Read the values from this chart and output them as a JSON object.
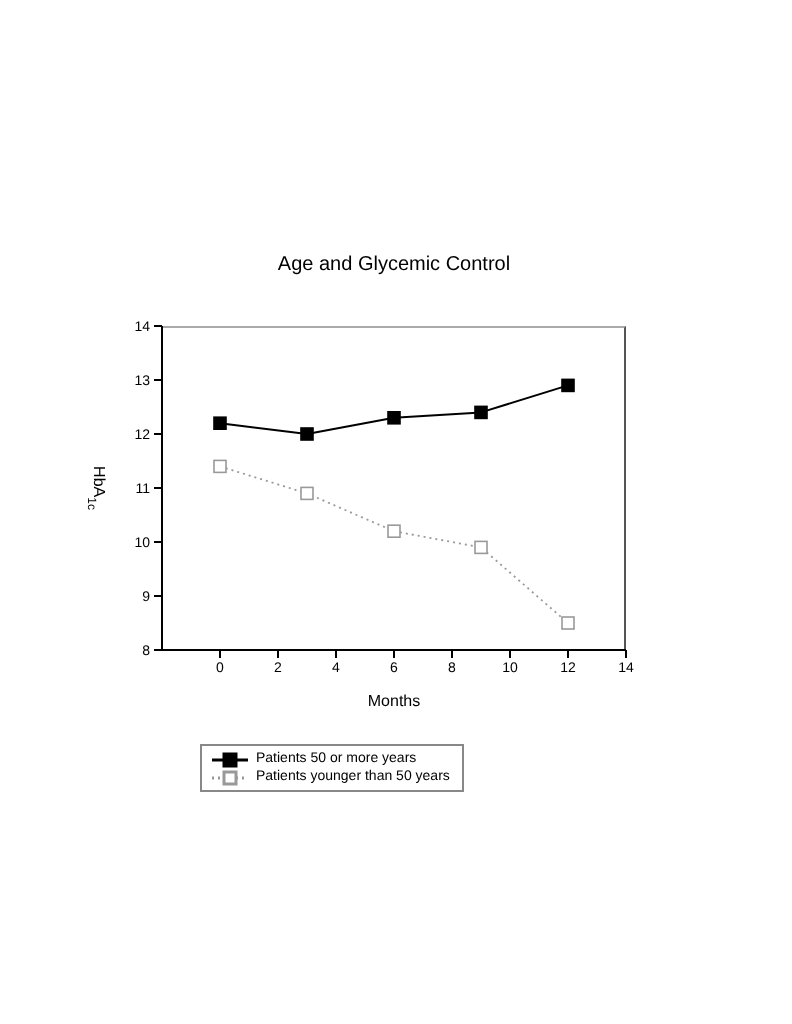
{
  "chart_data": {
    "type": "line",
    "title": "Age and Glycemic Control",
    "xlabel": "Months",
    "ylabel": "HbA$_{1c}$",
    "x": [
      0,
      3,
      6,
      9,
      12
    ],
    "series": [
      {
        "name": "Patients 50 or more years",
        "color": "#000000",
        "values": [
          12.2,
          12.0,
          12.3,
          12.4,
          12.9
        ],
        "line_style": "solid"
      },
      {
        "name": "Patients younger than 50 years",
        "color": "#999999",
        "values": [
          11.4,
          10.9,
          10.2,
          9.9,
          8.5
        ],
        "line_style": "dotted"
      }
    ],
    "marker": "square",
    "xlim": [
      -2,
      14
    ],
    "xticks": [
      0,
      2,
      4,
      6,
      8,
      10,
      12,
      14
    ],
    "ylim": [
      8,
      14
    ],
    "yticks": [
      8,
      9,
      10,
      11,
      12,
      13,
      14
    ],
    "legend": "bottom left"
  }
}
